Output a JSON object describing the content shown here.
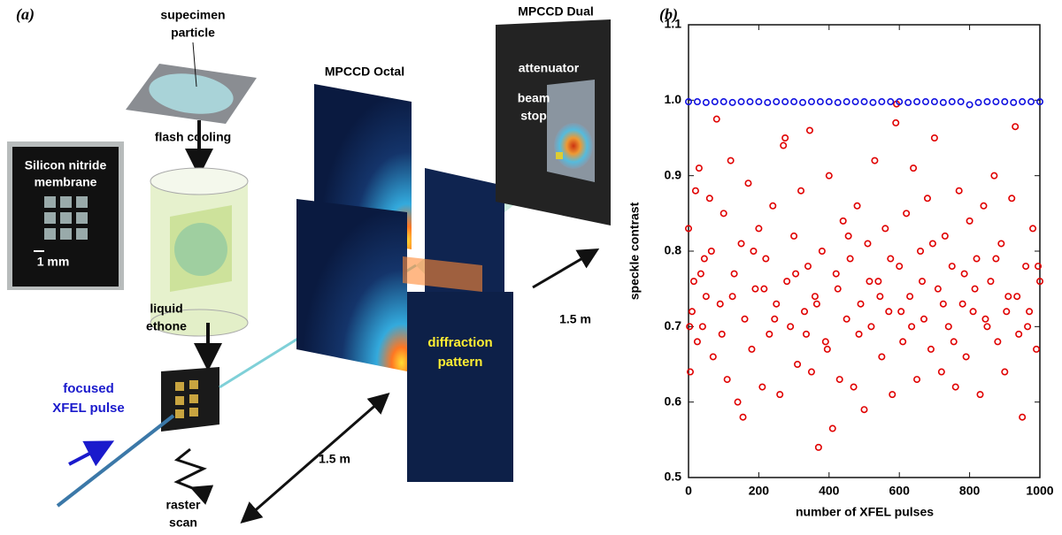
{
  "panel_a": {
    "label": "(a)",
    "specimen": [
      "supecimen",
      "particle"
    ],
    "membrane": [
      "Silicon nitride",
      "membrane"
    ],
    "scale": "1 mm",
    "cooling": "flash cooling",
    "liquid": [
      "liquid",
      "ethone"
    ],
    "pulse": [
      "focused",
      "XFEL pulse"
    ],
    "raster": [
      "raster",
      "scan"
    ],
    "distance_1": "1.5 m",
    "distance_2": "1.5 m",
    "octal": "MPCCD Octal",
    "dual": "MPCCD Dual",
    "attenuator": "attenuator",
    "stop": [
      "beam",
      "stop"
    ],
    "pattern": [
      "diffraction",
      "pattern"
    ]
  },
  "chart_data": {
    "type": "scatter",
    "label": "(b)",
    "x_label": "number of XFEL pulses",
    "y_label": "speckle contrast",
    "xlim": [
      0,
      1000
    ],
    "xticks": [
      0,
      200,
      400,
      600,
      800,
      1000
    ],
    "ylim": [
      0.5,
      1.1
    ],
    "yticks": [
      0.5,
      0.6,
      0.7,
      0.8,
      0.9,
      {
        "value": 1,
        "label": "1.0"
      },
      1.1
    ],
    "series": [
      {
        "color": "#e00000",
        "x": [
          0,
          5,
          10,
          15,
          20,
          25,
          30,
          40,
          45,
          50,
          60,
          70,
          80,
          90,
          100,
          110,
          120,
          130,
          140,
          150,
          160,
          170,
          180,
          190,
          200,
          210,
          220,
          230,
          240,
          250,
          260,
          270,
          280,
          290,
          300,
          310,
          320,
          330,
          340,
          345,
          350,
          360,
          370,
          380,
          390,
          400,
          410,
          420,
          430,
          440,
          450,
          460,
          470,
          480,
          490,
          500,
          510,
          520,
          530,
          540,
          550,
          560,
          570,
          580,
          590,
          600,
          610,
          620,
          630,
          640,
          650,
          660,
          670,
          680,
          690,
          700,
          710,
          720,
          730,
          740,
          750,
          760,
          770,
          780,
          790,
          800,
          810,
          820,
          830,
          840,
          850,
          860,
          870,
          880,
          890,
          900,
          910,
          920,
          930,
          940,
          950,
          960,
          970,
          980,
          990,
          1000,
          3,
          35,
          65,
          95,
          125,
          155,
          185,
          215,
          245,
          275,
          305,
          335,
          365,
          395,
          425,
          455,
          485,
          515,
          545,
          575,
          605,
          635,
          665,
          695,
          725,
          755,
          785,
          815,
          845,
          875,
          905,
          935,
          965,
          995,
          592
        ],
        "values": [
          0.83,
          0.64,
          0.72,
          0.76,
          0.88,
          0.68,
          0.91,
          0.7,
          0.79,
          0.74,
          0.87,
          0.66,
          0.975,
          0.73,
          0.85,
          0.63,
          0.92,
          0.77,
          0.6,
          0.81,
          0.71,
          0.89,
          0.67,
          0.75,
          0.83,
          0.62,
          0.79,
          0.69,
          0.86,
          0.73,
          0.61,
          0.94,
          0.76,
          0.7,
          0.82,
          0.65,
          0.88,
          0.72,
          0.78,
          0.96,
          0.64,
          0.74,
          0.54,
          0.8,
          0.68,
          0.9,
          0.565,
          0.77,
          0.63,
          0.84,
          0.71,
          0.79,
          0.62,
          0.86,
          0.73,
          0.59,
          0.81,
          0.7,
          0.92,
          0.76,
          0.66,
          0.83,
          0.72,
          0.61,
          0.97,
          0.78,
          0.68,
          0.85,
          0.74,
          0.91,
          0.63,
          0.8,
          0.71,
          0.87,
          0.67,
          0.95,
          0.75,
          0.64,
          0.82,
          0.7,
          0.78,
          0.62,
          0.88,
          0.73,
          0.66,
          0.84,
          0.72,
          0.79,
          0.61,
          0.86,
          0.7,
          0.76,
          0.9,
          0.68,
          0.81,
          0.64,
          0.74,
          0.87,
          0.965,
          0.69,
          0.58,
          0.78,
          0.72,
          0.83,
          0.67,
          0.76,
          0.7,
          0.77,
          0.8,
          0.69,
          0.74,
          0.58,
          0.8,
          0.75,
          0.71,
          0.95,
          0.77,
          0.69,
          0.73,
          0.67,
          0.75,
          0.82,
          0.69,
          0.76,
          0.74,
          0.79,
          0.72,
          0.7,
          0.76,
          0.81,
          0.73,
          0.68,
          0.77,
          0.75,
          0.71,
          0.79,
          0.72,
          0.74,
          0.7,
          0.78,
          0.995
        ]
      },
      {
        "color": "#1010e0",
        "x": [
          0,
          25,
          50,
          75,
          100,
          125,
          150,
          175,
          200,
          225,
          250,
          275,
          300,
          325,
          350,
          375,
          400,
          425,
          450,
          475,
          500,
          525,
          550,
          575,
          600,
          625,
          650,
          675,
          700,
          725,
          750,
          775,
          800,
          825,
          850,
          875,
          900,
          925,
          950,
          975,
          1000
        ],
        "values": [
          0.998,
          0.998,
          0.997,
          0.998,
          0.998,
          0.997,
          0.998,
          0.998,
          0.998,
          0.997,
          0.998,
          0.998,
          0.998,
          0.997,
          0.998,
          0.998,
          0.998,
          0.997,
          0.998,
          0.998,
          0.998,
          0.997,
          0.998,
          0.998,
          0.998,
          0.997,
          0.998,
          0.998,
          0.998,
          0.997,
          0.998,
          0.998,
          0.994,
          0.997,
          0.998,
          0.998,
          0.998,
          0.997,
          0.998,
          0.998,
          0.998
        ]
      }
    ]
  }
}
